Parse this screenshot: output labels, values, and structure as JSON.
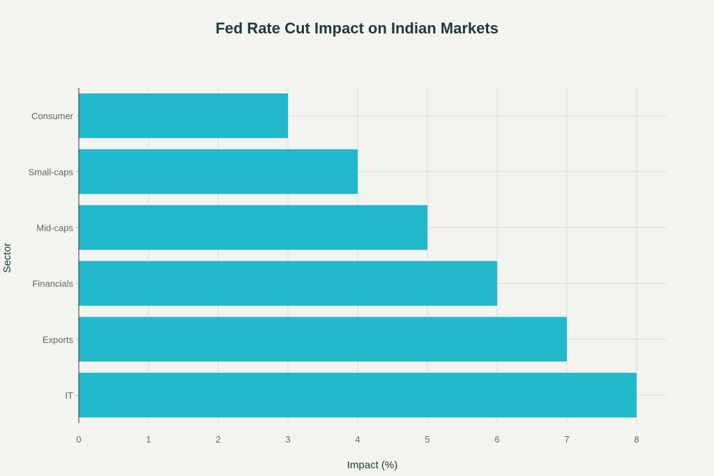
{
  "chart_data": {
    "type": "bar",
    "orientation": "horizontal",
    "title": "Fed Rate Cut Impact on Indian Markets",
    "xlabel": "Impact (%)",
    "ylabel": "Sector",
    "categories": [
      "Consumer",
      "Small-caps",
      "Mid-caps",
      "Financials",
      "Exports",
      "IT"
    ],
    "values": [
      3,
      4,
      5,
      6,
      7,
      8
    ],
    "xlim": [
      0,
      8.43
    ],
    "xticks": [
      0,
      1,
      2,
      3,
      4,
      5,
      6,
      7,
      8
    ],
    "grid": true,
    "bar_color": "#21b8cc",
    "background": "#f3f3ef"
  }
}
